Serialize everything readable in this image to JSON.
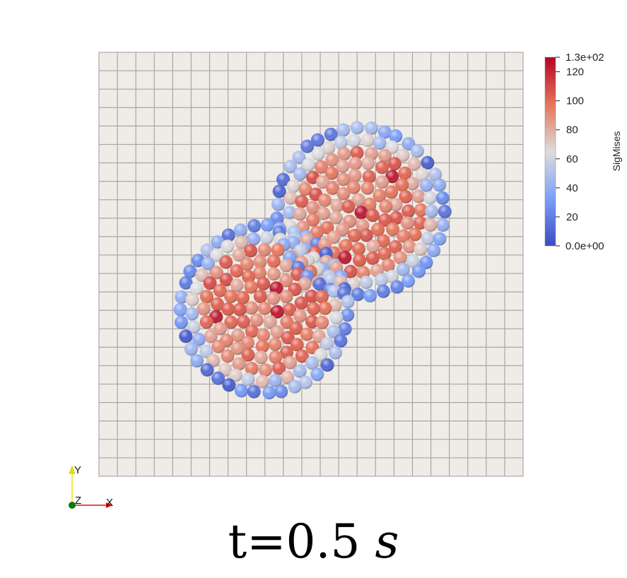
{
  "colorbar": {
    "title": "SigMises",
    "max_label": "1.3e+02",
    "min_label": "0.0e+00",
    "ticks": [
      "120",
      "100",
      "80",
      "60",
      "40",
      "20"
    ],
    "range": [
      0,
      130
    ],
    "colors": {
      "low": "#3b4cc0",
      "mid": "#dddddd",
      "high": "#b40426"
    }
  },
  "axes": {
    "x_label": "X",
    "y_label": "Y",
    "z_label": "Z"
  },
  "time": {
    "prefix": "t=",
    "value": "0.5",
    "unit": "s"
  }
}
